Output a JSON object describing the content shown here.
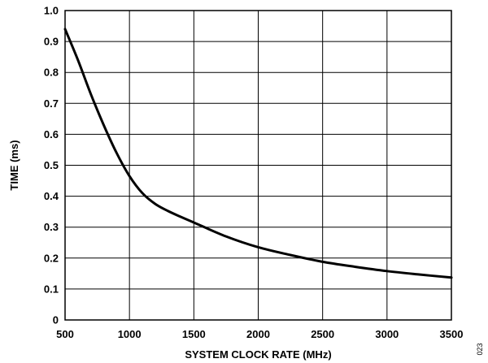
{
  "chart_data": {
    "type": "line",
    "xlabel": "SYSTEM CLOCK RATE (MHz)",
    "ylabel": "TIME (ms)",
    "xlim": [
      500,
      3500
    ],
    "ylim": [
      0,
      1.0
    ],
    "x_ticks": [
      500,
      1000,
      1500,
      2000,
      2500,
      3000,
      3500
    ],
    "y_ticks": [
      0,
      0.1,
      0.2,
      0.3,
      0.4,
      0.5,
      0.6,
      0.7,
      0.8,
      0.9,
      1.0
    ],
    "x_tick_labels": [
      "500",
      "1000",
      "1500",
      "2000",
      "2500",
      "3000",
      "3500"
    ],
    "y_tick_labels": [
      "0",
      "0.1",
      "0.2",
      "0.3",
      "0.4",
      "0.5",
      "0.6",
      "0.7",
      "0.8",
      "0.9",
      "1.0"
    ],
    "grid": true,
    "line_color": "#000000",
    "series": [
      {
        "x": [
          500,
          600,
          700,
          800,
          900,
          1000,
          1100,
          1200,
          1300,
          1400,
          1500,
          1750,
          2000,
          2250,
          2500,
          2750,
          3000,
          3250,
          3500
        ],
        "y": [
          0.94,
          0.84,
          0.73,
          0.63,
          0.54,
          0.465,
          0.41,
          0.375,
          0.352,
          0.333,
          0.315,
          0.27,
          0.235,
          0.21,
          0.188,
          0.172,
          0.158,
          0.147,
          0.137
        ]
      }
    ]
  },
  "figure_id": "023"
}
